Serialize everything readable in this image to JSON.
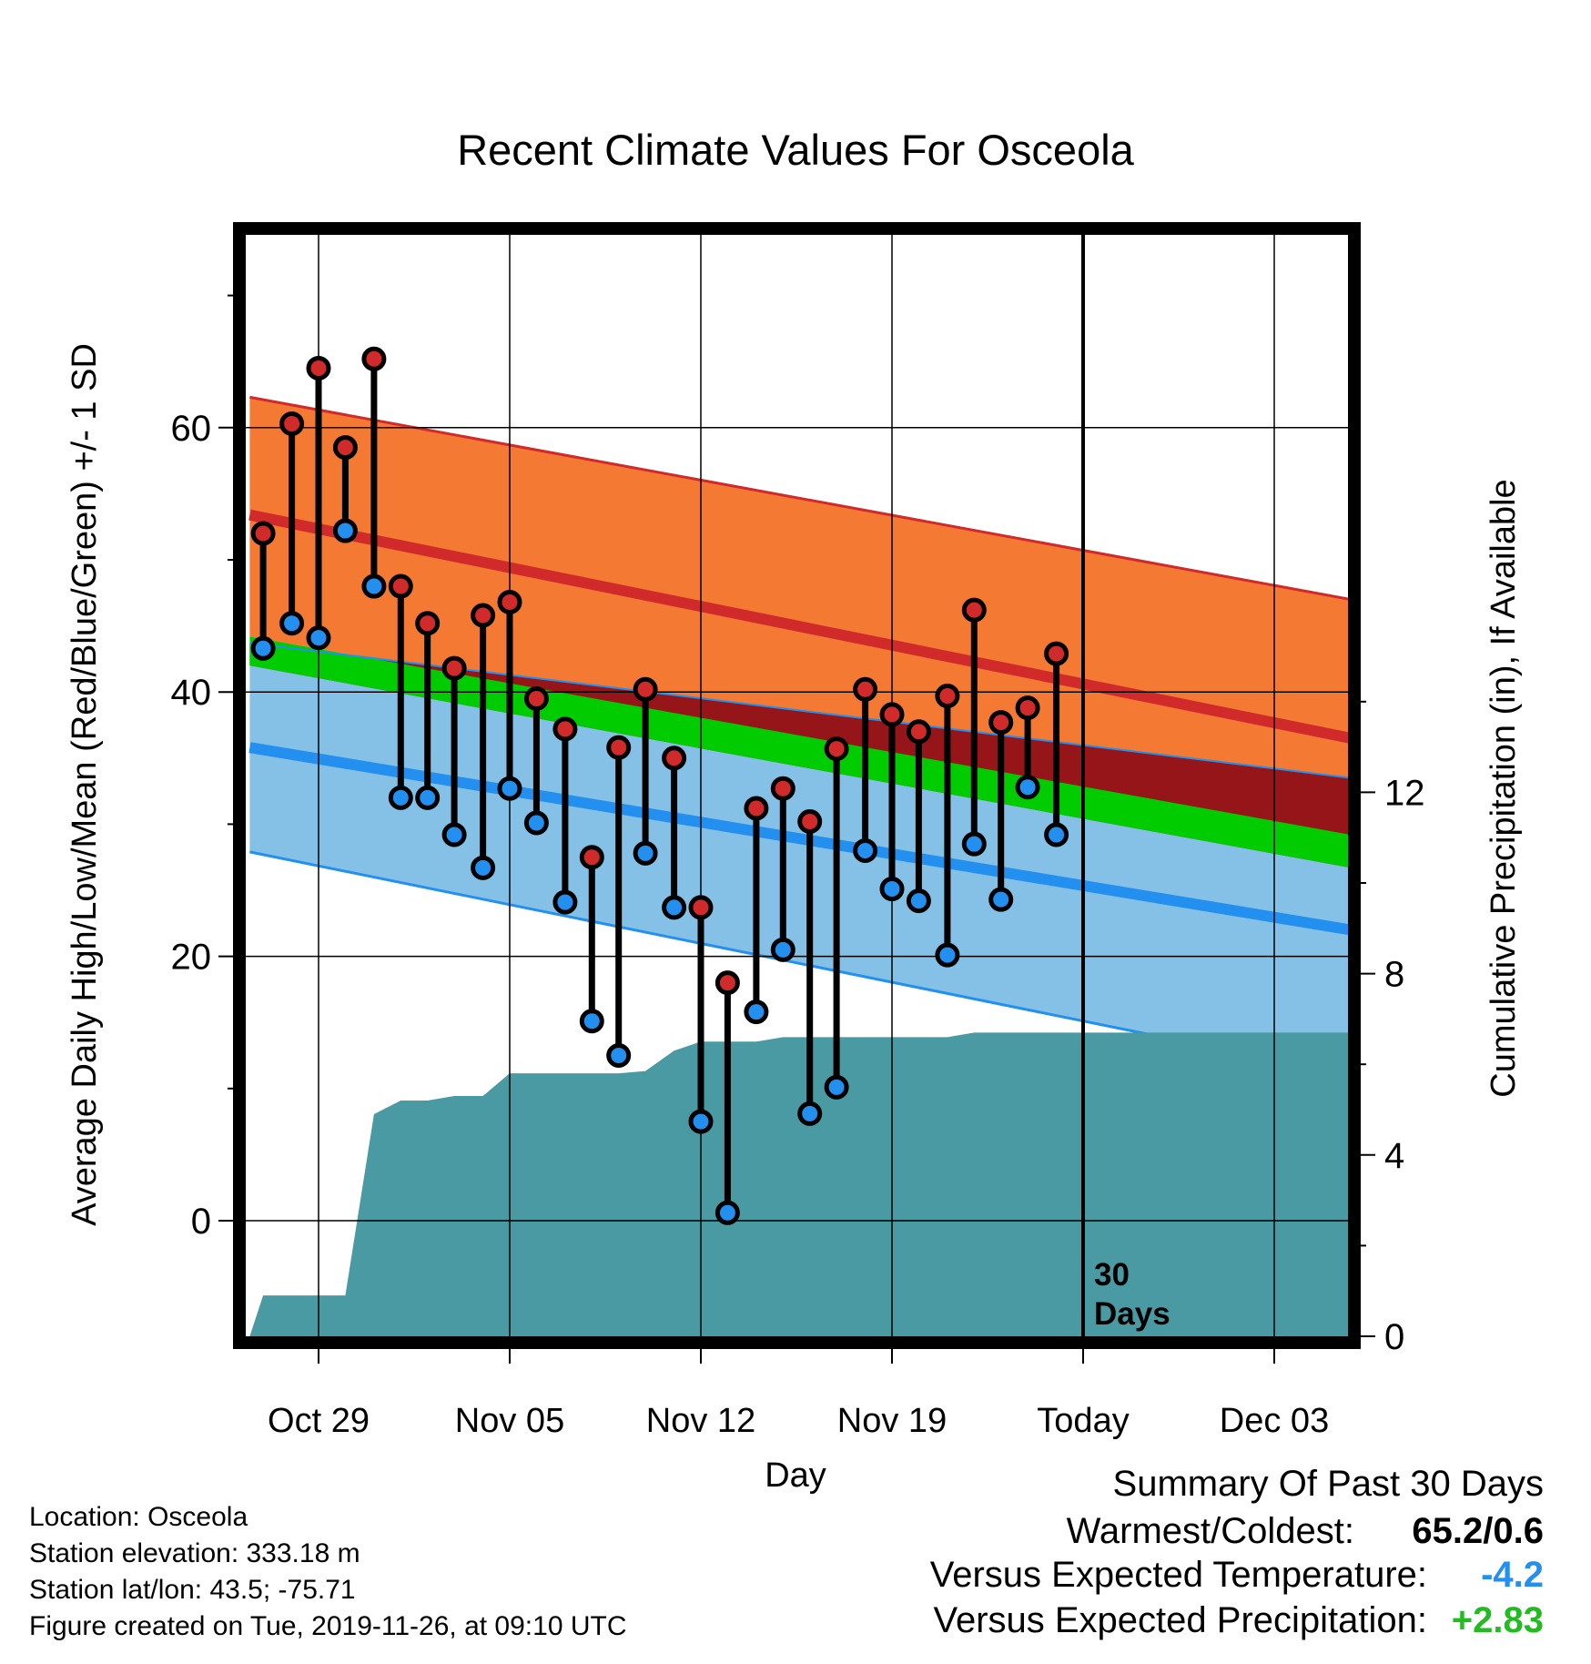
{
  "chart_data": {
    "type": "line",
    "title": "Recent Climate Values For Osceola",
    "xlabel": "Day",
    "ylabel": "Average Daily High/Low/Mean (Red/Blue/Green) +/- 1 SD",
    "y2label": "Cumulative Precipitation (in), If Available",
    "ylim": [
      -9,
      75
    ],
    "y2lim": [
      0,
      24.3
    ],
    "yticks": [
      0,
      20,
      40,
      60
    ],
    "y2ticks": [
      0,
      4,
      8,
      12
    ],
    "xlim": [
      -3.6,
      54.0
    ],
    "xticks": [
      {
        "day": 0,
        "label": "Oct 29"
      },
      {
        "day": 10,
        "label": "Nov 05"
      },
      {
        "day": 20,
        "label": "Nov 12"
      },
      {
        "day": 30,
        "label": "Nov 19"
      },
      {
        "day": 40,
        "label": "Today"
      },
      {
        "day": 50,
        "label": "Dec 03"
      }
    ],
    "today_line": {
      "day": 40,
      "label_line1": "30",
      "label_line2": "Days"
    },
    "grid": true,
    "normals": {
      "days": [
        -3.6,
        54.0
      ],
      "high_mean": [
        53.4,
        36.5
      ],
      "high_plus_sd": [
        62.3,
        47.0
      ],
      "low_mean": [
        35.8,
        22.0
      ],
      "low_minus_sd": [
        27.9,
        11.0
      ],
      "mean": [
        43.7,
        28.0
      ],
      "mean_band_top": [
        44.2,
        29.2
      ],
      "mean_band_bottom": [
        42.0,
        26.7
      ],
      "low_plus_sd": [
        43.7,
        33.5
      ]
    },
    "colors": {
      "high_band": "#f47a34",
      "high_line": "#d12a2a",
      "low_band": "#85c1e6",
      "low_line": "#2390f0",
      "mean_band": "#00cc00",
      "overlap": "#951519",
      "precip": "#4a9aa3",
      "high_marker": "#d12a2a",
      "low_marker": "#2390f0"
    },
    "series": [
      {
        "name": "High",
        "x": [
          -2.9,
          -1.4,
          0,
          1.4,
          2.9,
          4.3,
          5.7,
          7.1,
          8.6,
          10,
          11.4,
          12.9,
          14.3,
          15.7,
          17.1,
          18.6,
          20,
          21.4,
          22.9,
          24.3,
          25.7,
          27.1,
          28.6,
          30,
          31.4,
          32.9,
          34.3,
          35.7,
          37.1,
          38.6
        ],
        "values": [
          52,
          60.3,
          64.5,
          58.5,
          65.2,
          48,
          45.2,
          41.8,
          45.8,
          46.8,
          39.5,
          37.2,
          27.5,
          35.8,
          40.2,
          35,
          23.7,
          18,
          31.2,
          32.7,
          30.2,
          35.7,
          40.2,
          38.3,
          37,
          39.7,
          46.2,
          37.7,
          38.8,
          42.9
        ]
      },
      {
        "name": "Low",
        "x": [
          -2.9,
          -1.4,
          0,
          1.4,
          2.9,
          4.3,
          5.7,
          7.1,
          8.6,
          10,
          11.4,
          12.9,
          14.3,
          15.7,
          17.1,
          18.6,
          20,
          21.4,
          22.9,
          24.3,
          25.7,
          27.1,
          28.6,
          30,
          31.4,
          32.9,
          34.3,
          35.7,
          37.1,
          38.6
        ],
        "values": [
          43.3,
          45.2,
          44.1,
          52.2,
          48,
          32,
          32,
          29.2,
          26.7,
          32.7,
          30.1,
          24.1,
          15.1,
          12.5,
          27.8,
          23.7,
          7.5,
          0.6,
          15.8,
          20.5,
          8.1,
          10.1,
          28,
          25.1,
          24.2,
          20.1,
          28.5,
          24.3,
          32.8,
          29.2
        ]
      },
      {
        "name": "Cumulative Precipitation",
        "axis": "right",
        "x": [
          -3.6,
          -2.9,
          -1.4,
          0,
          1.4,
          2.9,
          4.3,
          5.7,
          7.1,
          8.6,
          10,
          11.4,
          12.9,
          14.3,
          15.7,
          17.1,
          18.6,
          20,
          21.4,
          22.9,
          24.3,
          25.7,
          27.1,
          28.6,
          30,
          31.4,
          32.9,
          34.3,
          35.7,
          37.1,
          38.6,
          40,
          54
        ],
        "values": [
          0,
          0.9,
          0.9,
          0.9,
          0.9,
          4.9,
          5.2,
          5.2,
          5.3,
          5.3,
          5.8,
          5.8,
          5.8,
          5.8,
          5.8,
          5.85,
          6.3,
          6.5,
          6.5,
          6.5,
          6.6,
          6.6,
          6.6,
          6.6,
          6.6,
          6.6,
          6.6,
          6.7,
          6.7,
          6.7,
          6.7,
          6.7,
          6.7
        ]
      }
    ]
  },
  "info": {
    "location": "Location: Osceola",
    "elevation": "Station elevation: 333.18 m",
    "latlon": "Station lat/lon: 43.5; -75.71",
    "created": "Figure created on Tue, 2019-11-26, at 09:10 UTC"
  },
  "summary": {
    "title": "Summary Of Past 30 Days",
    "warmest_label": "Warmest/Coldest:",
    "warmest_value": "65.2/0.6",
    "temp_label": "Versus Expected Temperature:",
    "temp_value": "-4.2",
    "temp_color": "#2390f0",
    "precip_label": "Versus Expected Precipitation:",
    "precip_value": "+2.83",
    "precip_color": "#22bb22"
  }
}
